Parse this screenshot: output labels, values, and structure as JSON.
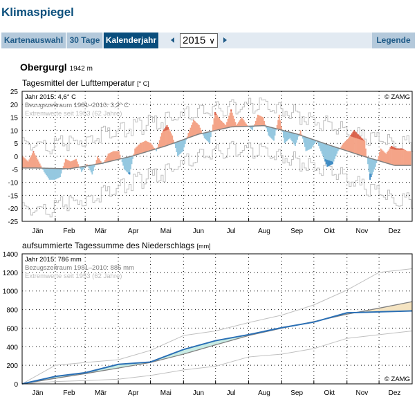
{
  "app_title": "Klimaspiegel",
  "nav": {
    "tabs": [
      {
        "label": "Kartenauswahl",
        "active": false
      },
      {
        "label": "30 Tage",
        "active": false
      },
      {
        "label": "Kalenderjahr",
        "active": true
      }
    ],
    "year_select": "2015",
    "legend_label": "Legende",
    "prev_icon": "triangle-left-icon",
    "next_icon": "triangle-right-icon"
  },
  "station": {
    "name": "Obergurgl",
    "elevation": "1942 m"
  },
  "colors": {
    "accent": "#0a4e7d",
    "warm": "#f4a488",
    "warm_strong": "#d9604a",
    "cold": "#95c8e0",
    "cold_strong": "#3f8bc3",
    "precip_line": "#2a6fb5",
    "precip_above": "#c8ece4",
    "precip_below": "#f5e4c2",
    "normal_line": "#808080",
    "extreme_line": "#c0c0c0"
  },
  "chart_data": [
    {
      "type": "bar",
      "title": "Tagesmittel der Lufttemperatur",
      "unit": "[° C]",
      "legend": [
        "Jahr 2015: 4,6° C",
        "Bezugszeitraum 1981–2010: 3,2° C",
        "Extremwerte seit 1953 (62 Jahre)"
      ],
      "copyright": "© ZAMG",
      "months": [
        "Jän",
        "Feb",
        "Mär",
        "Apr",
        "Mai",
        "Jun",
        "Jul",
        "Aug",
        "Sep",
        "Okt",
        "Nov",
        "Dez"
      ],
      "ylim": [
        -25,
        25
      ],
      "yticks": [
        25,
        20,
        15,
        10,
        5,
        0,
        -5,
        -10,
        -15,
        -20,
        -25
      ],
      "grid": true,
      "sample_days": [
        1,
        6,
        11,
        16,
        21,
        26,
        31,
        36,
        41,
        46,
        51,
        56,
        61,
        66,
        71,
        76,
        81,
        86,
        91,
        96,
        101,
        106,
        111,
        116,
        121,
        126,
        131,
        136,
        141,
        146,
        151,
        156,
        161,
        166,
        171,
        176,
        181,
        186,
        191,
        196,
        201,
        206,
        211,
        216,
        221,
        226,
        231,
        236,
        241,
        246,
        251,
        256,
        261,
        266,
        271,
        276,
        281,
        286,
        291,
        296,
        301,
        306,
        311,
        316,
        321,
        326,
        331,
        336,
        341,
        346,
        351,
        356,
        361,
        365
      ],
      "values_2015": [
        0,
        -2,
        2,
        -2,
        -6,
        -9,
        -9,
        -8,
        -1,
        -2,
        -1,
        -6,
        -3,
        -7,
        0,
        -3,
        1,
        2,
        2,
        -5,
        -7,
        3,
        5,
        6,
        5,
        2,
        9,
        12,
        8,
        0,
        2,
        9,
        14,
        12,
        7,
        5,
        17,
        14,
        12,
        18,
        12,
        15,
        12,
        10,
        16,
        15,
        8,
        6,
        16,
        5,
        7,
        4,
        10,
        2,
        3,
        6,
        1,
        -4,
        -3,
        2,
        5,
        7,
        10,
        8,
        6,
        -9,
        -4,
        3,
        1,
        4,
        3,
        3,
        2,
        2
      ],
      "normal_monthly_mid": [
        -4.5,
        -4.8,
        -2.8,
        0.2,
        4.0,
        8.5,
        11.3,
        11.8,
        8.6,
        4.3,
        0.2,
        -3.5
      ],
      "extreme_max_monthly": [
        4,
        5,
        9,
        11,
        14,
        17,
        19,
        20,
        16,
        12,
        7,
        5
      ],
      "extreme_min_monthly": [
        -21,
        -18,
        -14,
        -10,
        -6,
        0,
        3,
        2,
        -2,
        -5,
        -12,
        -17
      ]
    },
    {
      "type": "line",
      "title": "aufsummierte Tagessumme des Niederschlags",
      "unit": "[mm]",
      "legend": [
        "Jahr 2015: 786 mm",
        "Bezugszeitraum 1981–2010: 885 mm",
        "Extremwerte seit 1953 (62 Jahre)"
      ],
      "copyright": "© ZAMG",
      "months": [
        "Jän",
        "Feb",
        "Mär",
        "Apr",
        "Mai",
        "Jun",
        "Jul",
        "Aug",
        "Sep",
        "Okt",
        "Nov",
        "Dez"
      ],
      "ylim": [
        0,
        1400
      ],
      "yticks": [
        1400,
        1200,
        1000,
        800,
        600,
        400,
        200,
        0
      ],
      "grid": true,
      "x_month_boundaries": [
        "1.1.",
        "1.2.",
        "1.3.",
        "1.4.",
        "1.5.",
        "1.6.",
        "1.7.",
        "1.8.",
        "1.9.",
        "1.10.",
        "1.11.",
        "1.12.",
        "31.12."
      ],
      "cum_2015": [
        0,
        80,
        120,
        210,
        235,
        370,
        465,
        530,
        605,
        665,
        765,
        775,
        786
      ],
      "cum_normal": [
        0,
        60,
        110,
        170,
        230,
        320,
        420,
        520,
        600,
        670,
        750,
        815,
        885
      ],
      "cum_extreme_max": [
        0,
        200,
        230,
        260,
        360,
        520,
        570,
        660,
        740,
        850,
        1010,
        1200,
        1240
      ],
      "cum_extreme_min": [
        0,
        25,
        35,
        50,
        90,
        150,
        190,
        290,
        320,
        380,
        490,
        530,
        570
      ]
    }
  ]
}
